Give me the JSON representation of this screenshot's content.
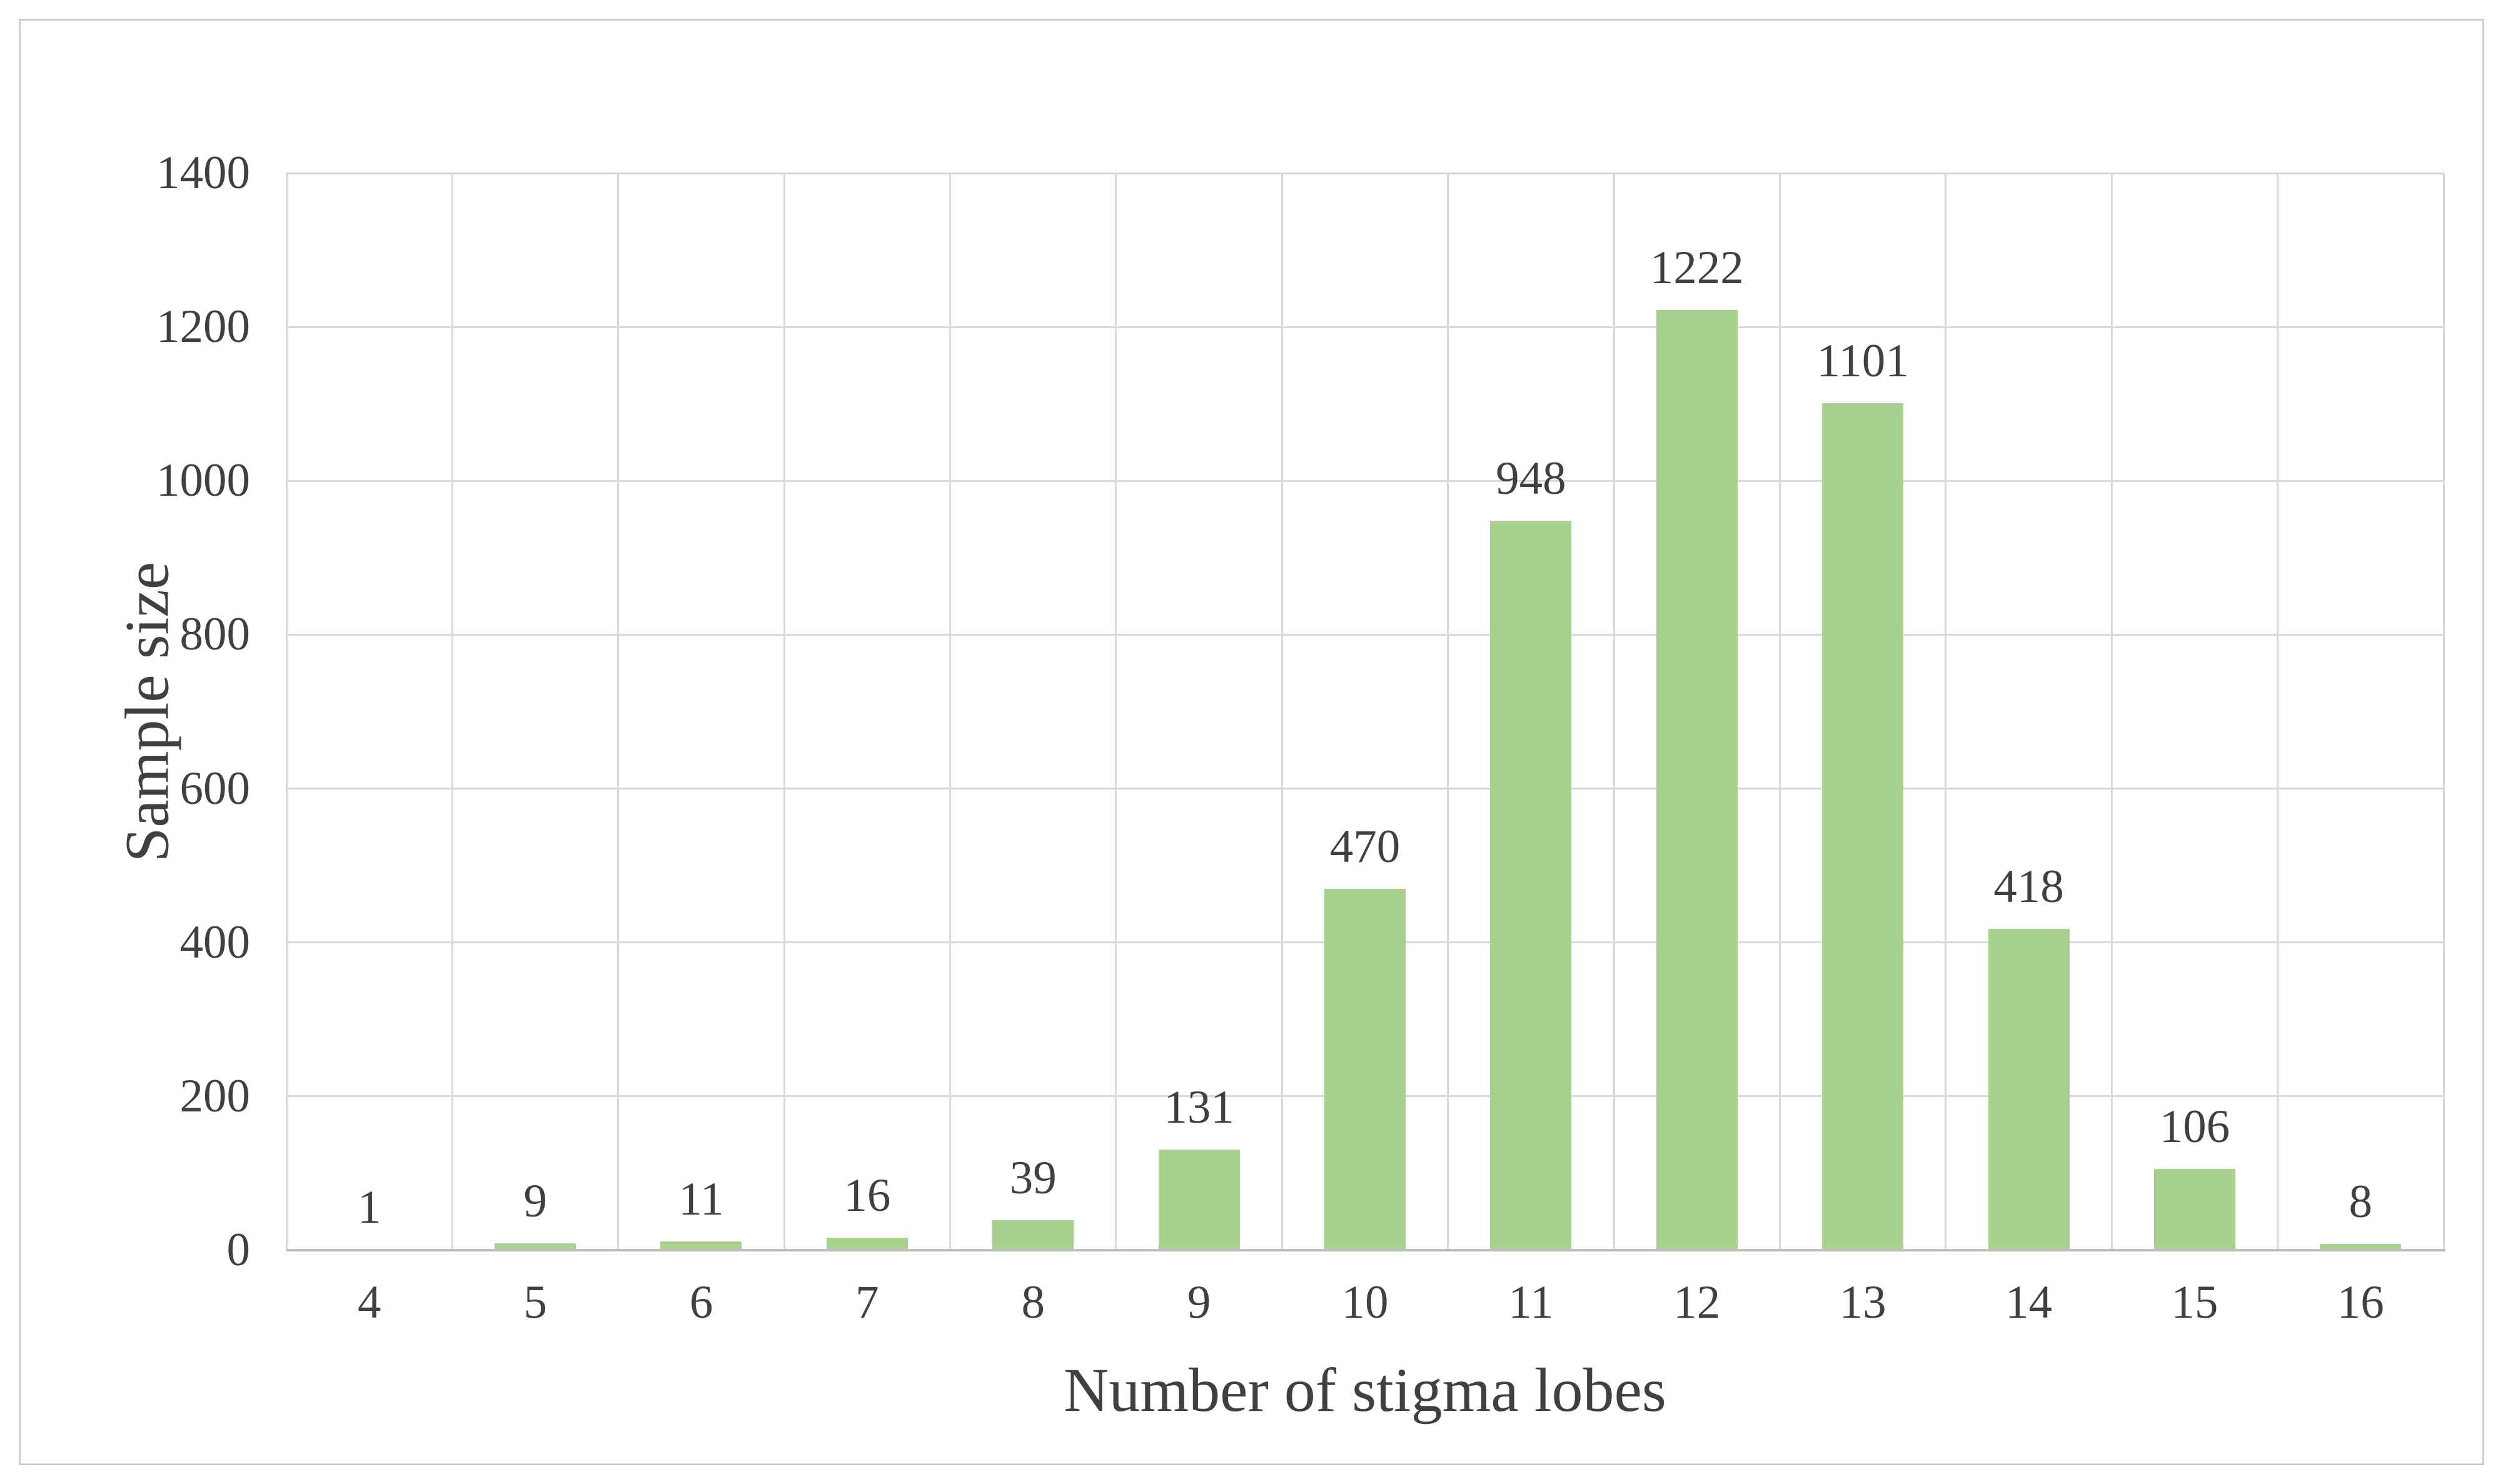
{
  "figure": {
    "background": "#ffffff",
    "border_color": "#cdcdcd"
  },
  "chart_data": {
    "type": "bar",
    "title": "",
    "categories": [
      "4",
      "5",
      "6",
      "7",
      "8",
      "9",
      "10",
      "11",
      "12",
      "13",
      "14",
      "15",
      "16"
    ],
    "values": [
      1,
      9,
      11,
      16,
      39,
      131,
      470,
      948,
      1222,
      1101,
      418,
      106,
      8
    ],
    "data_labels": [
      "1",
      "9",
      "11",
      "16",
      "39",
      "131",
      "470",
      "948",
      "1222",
      "1101",
      "418",
      "106",
      "8"
    ],
    "xlabel": "Number of stigma lobes",
    "ylabel": "Sample size",
    "ylim": [
      0,
      1400
    ],
    "yticks": [
      0,
      200,
      400,
      600,
      800,
      1000,
      1200,
      1400
    ],
    "ytick_labels": [
      "0",
      "200",
      "400",
      "600",
      "800",
      "1000",
      "1200",
      "1400"
    ],
    "grid": true,
    "legend_position": "none",
    "bar_color": "#a9d18e",
    "gridline_color": "#d9d9d9",
    "axis_line_color": "#bfbfbf",
    "text_color": "#404040"
  }
}
